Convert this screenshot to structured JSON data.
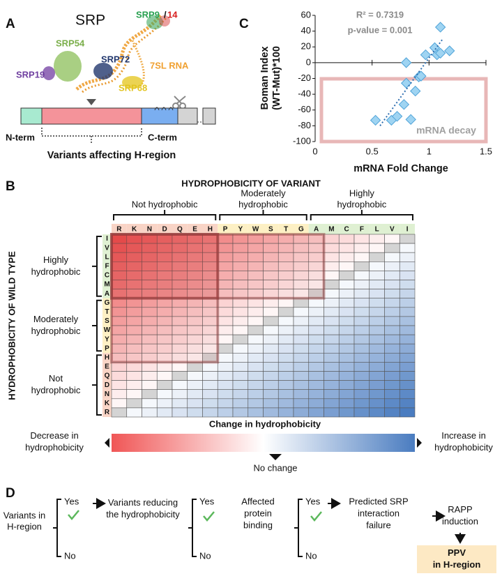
{
  "panel_a": {
    "label": "A",
    "title": "SRP",
    "srp9": "SRP9",
    "slash": "/",
    "srp14": "14",
    "srp54": "SRP54",
    "srp72": "SRP72",
    "rna": "7SL RNA",
    "srp19": "SRP19",
    "srp68": "SRP68",
    "n_term": "N-term",
    "c_term": "C-term",
    "caption": "Variants affecting H-region"
  },
  "panel_b": {
    "label": "B"
  },
  "panel_c": {
    "label": "C"
  },
  "chart_data": [
    {
      "type": "scatter",
      "y_label": [
        "Boman Index",
        "(WT-Mut)*100"
      ],
      "x_label": "mRNA Fold Change",
      "annotations": [
        "R² = 0.7319",
        "p-value = 0.001"
      ],
      "region_label": "mRNA decay",
      "x": [
        0.53,
        0.67,
        0.72,
        0.78,
        0.8,
        0.8,
        0.84,
        0.88,
        0.91,
        0.93,
        0.97,
        1.05,
        1.07,
        1.1,
        1.1,
        1.18
      ],
      "values": [
        -73,
        -73,
        -68,
        -53,
        -26,
        0,
        -72,
        -36,
        -18,
        -17,
        10,
        19,
        10,
        45,
        12,
        15
      ],
      "trendline": {
        "x": [
          0.57,
          1.12
        ],
        "values": [
          -80,
          30
        ]
      },
      "color": "#9fd4f2",
      "edge_color": "#4fa3d8",
      "xlim": [
        0,
        1.5
      ],
      "xticks": [
        0,
        0.5,
        1,
        1.5
      ],
      "ylim": [
        -100,
        60
      ],
      "yticks": [
        -100,
        -80,
        -60,
        -40,
        -20,
        0,
        20,
        40,
        60
      ]
    },
    {
      "type": "heatmap",
      "title": "HYDROPHOBICITY OF VARIANT",
      "y_title": "HYDROPHOBICITY OF WILD TYPE",
      "column_groups": [
        {
          "label": [
            "Not hydrophobic"
          ],
          "color": "#f9d4c6",
          "categories": [
            "R",
            "K",
            "N",
            "D",
            "Q",
            "E",
            "H"
          ]
        },
        {
          "label": [
            "Moderately",
            "hydrophobic"
          ],
          "color": "#fdf0c4",
          "categories": [
            "P",
            "Y",
            "W",
            "S",
            "T",
            "G"
          ]
        },
        {
          "label": [
            "Highly",
            "hydrophobic"
          ],
          "color": "#dff0d2",
          "categories": [
            "A",
            "M",
            "C",
            "F",
            "L",
            "V",
            "I"
          ]
        }
      ],
      "row_groups": [
        {
          "label": [
            "Highly",
            "hydrophobic"
          ],
          "color": "#dff0d2",
          "categories": [
            "I",
            "V",
            "L",
            "F",
            "C",
            "M",
            "A"
          ]
        },
        {
          "label": [
            "Moderately",
            "hydrophobic"
          ],
          "color": "#fdf0c4",
          "categories": [
            "G",
            "T",
            "S",
            "W",
            "Y",
            "P"
          ]
        },
        {
          "label": [
            "Not",
            "hydrophobic"
          ],
          "color": "#f9d4c6",
          "categories": [
            "H",
            "E",
            "Q",
            "D",
            "N",
            "K",
            "R"
          ]
        }
      ],
      "values": [
        [
          -19,
          -18,
          -17,
          -16,
          -15,
          -14,
          -13,
          -12,
          -11,
          -10,
          -9,
          -8,
          -7,
          -6,
          -5,
          -4,
          -3,
          -2,
          -1,
          0
        ],
        [
          -18,
          -17,
          -16,
          -15,
          -14,
          -13,
          -12,
          -11,
          -10,
          -9,
          -8,
          -7,
          -6,
          -5,
          -4,
          -3,
          -2,
          -1,
          0,
          1
        ],
        [
          -17,
          -16,
          -15,
          -14,
          -13,
          -12,
          -11,
          -10,
          -9,
          -8,
          -7,
          -6,
          -5,
          -4,
          -3,
          -2,
          -1,
          0,
          1,
          2
        ],
        [
          -16,
          -15,
          -14,
          -13,
          -12,
          -11,
          -10,
          -9,
          -8,
          -7,
          -6,
          -5,
          -4,
          -3,
          -2,
          -1,
          0,
          1,
          2,
          3
        ],
        [
          -15,
          -14,
          -13,
          -12,
          -11,
          -10,
          -9,
          -8,
          -7,
          -6,
          -5,
          -4,
          -3,
          -2,
          -1,
          0,
          1,
          2,
          3,
          4
        ],
        [
          -14,
          -13,
          -12,
          -11,
          -10,
          -9,
          -8,
          -7,
          -6,
          -5,
          -4,
          -3,
          -2,
          -1,
          0,
          1,
          2,
          3,
          4,
          5
        ],
        [
          -13,
          -12,
          -11,
          -10,
          -9,
          -8,
          -7,
          -6,
          -5,
          -4,
          -3,
          -2,
          -1,
          0,
          1,
          2,
          3,
          4,
          5,
          6
        ],
        [
          -12,
          -11,
          -10,
          -9,
          -8,
          -7,
          -6,
          -5,
          -4,
          -3,
          -2,
          -1,
          0,
          1,
          2,
          3,
          4,
          5,
          6,
          7
        ],
        [
          -11,
          -10,
          -9,
          -8,
          -7,
          -6,
          -5,
          -4,
          -3,
          -2,
          -1,
          0,
          1,
          2,
          3,
          4,
          5,
          6,
          7,
          8
        ],
        [
          -10,
          -9,
          -8,
          -7,
          -6,
          -5,
          -4,
          -3,
          -2,
          -1,
          0,
          1,
          2,
          3,
          4,
          5,
          6,
          7,
          8,
          9
        ],
        [
          -9,
          -8,
          -7,
          -6,
          -5,
          -4,
          -3,
          -2,
          -1,
          0,
          1,
          2,
          3,
          4,
          5,
          6,
          7,
          8,
          9,
          10
        ],
        [
          -8,
          -7,
          -6,
          -5,
          -4,
          -3,
          -2,
          -1,
          0,
          1,
          2,
          3,
          4,
          5,
          6,
          7,
          8,
          9,
          10,
          11
        ],
        [
          -7,
          -6,
          -5,
          -4,
          -3,
          -2,
          -1,
          0,
          1,
          2,
          3,
          4,
          5,
          6,
          7,
          8,
          9,
          10,
          11,
          12
        ],
        [
          -6,
          -5,
          -4,
          -3,
          -2,
          -1,
          0,
          1,
          2,
          3,
          4,
          5,
          6,
          7,
          8,
          9,
          10,
          11,
          12,
          13
        ],
        [
          -5,
          -4,
          -3,
          -2,
          -1,
          0,
          1,
          2,
          3,
          4,
          5,
          6,
          7,
          8,
          9,
          10,
          11,
          12,
          13,
          14
        ],
        [
          -4,
          -3,
          -2,
          -1,
          0,
          1,
          2,
          3,
          4,
          5,
          6,
          7,
          8,
          9,
          10,
          11,
          12,
          13,
          14,
          15
        ],
        [
          -3,
          -2,
          -1,
          0,
          1,
          2,
          3,
          4,
          5,
          6,
          7,
          8,
          9,
          10,
          11,
          12,
          13,
          14,
          15,
          16
        ],
        [
          -2,
          -1,
          0,
          1,
          2,
          3,
          4,
          5,
          6,
          7,
          8,
          9,
          10,
          11,
          12,
          13,
          14,
          15,
          16,
          17
        ],
        [
          -1,
          0,
          1,
          2,
          3,
          4,
          5,
          6,
          7,
          8,
          9,
          10,
          11,
          12,
          13,
          14,
          15,
          16,
          17,
          18
        ],
        [
          0,
          1,
          2,
          3,
          4,
          5,
          6,
          7,
          8,
          9,
          10,
          11,
          12,
          13,
          14,
          15,
          16,
          17,
          18,
          19
        ]
      ],
      "clim": [
        -19,
        19
      ],
      "colors": {
        "low": "#f05656",
        "mid": "#ffffff",
        "high": "#4a7cc0",
        "same": "#d4d4d4"
      },
      "colorbar_title": "Change in hydrophobicity",
      "low_label": [
        "Decrease in",
        "hydrophobicity"
      ],
      "high_label": [
        "Increase in",
        "hydrophobicity"
      ],
      "mid_label": "No change"
    }
  ],
  "flow": {
    "label": "D",
    "start": [
      "Variants in",
      "H-region"
    ],
    "steps": [
      {
        "yes": "Yes",
        "no": "No",
        "result": [
          "Variants reducing",
          "the hydrophobicity"
        ]
      },
      {
        "yes": "Yes",
        "no": "No",
        "result": [
          "Affected",
          "protein",
          "binding"
        ]
      },
      {
        "yes": "Yes",
        "no": "No",
        "result": [
          "Predicted SRP",
          "interaction",
          "failure"
        ]
      }
    ],
    "next": [
      "RAPP",
      "induction"
    ],
    "final": [
      "PPV",
      "in H-region"
    ]
  }
}
